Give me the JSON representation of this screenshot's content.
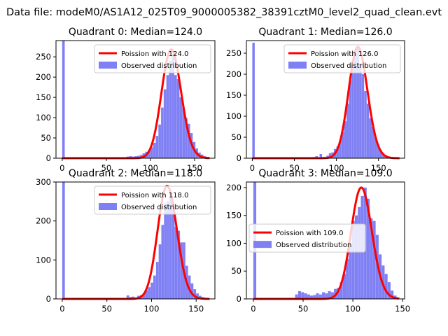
{
  "figure": {
    "title": "Data file: modeM0/AS1A12_025T09_9000005382_38391cztM0_level2_quad_clean.evt"
  },
  "colors": {
    "hist": "#8080f5",
    "fit": "#ff0000",
    "axis": "#000000"
  },
  "chart_data": [
    {
      "type": "bar",
      "title": "Quadrant 0: Median=124.0",
      "median": 124.0,
      "xlim": [
        -7,
        173
      ],
      "ylim": [
        0,
        290
      ],
      "xticks": [
        0,
        50,
        100,
        150
      ],
      "yticks": [
        0,
        50,
        100,
        150,
        200,
        250
      ],
      "bin_width": 2.9,
      "legend": {
        "placement": "upper right",
        "labels": [
          "Poission with 124.0",
          "Observed distribution"
        ]
      },
      "series": [
        {
          "name": "Observed distribution",
          "type": "histogram",
          "bins": [
            [
              0,
              290
            ],
            [
              73,
              4
            ],
            [
              76,
              5
            ],
            [
              79,
              4
            ],
            [
              82,
              5
            ],
            [
              85,
              6
            ],
            [
              88,
              8
            ],
            [
              91,
              12
            ],
            [
              94,
              16
            ],
            [
              97,
              20
            ],
            [
              100,
              27
            ],
            [
              103,
              38
            ],
            [
              106,
              55
            ],
            [
              109,
              83
            ],
            [
              112,
              125
            ],
            [
              115,
              170
            ],
            [
              118,
              205
            ],
            [
              121,
              240
            ],
            [
              124,
              255
            ],
            [
              127,
              205
            ],
            [
              130,
              195
            ],
            [
              133,
              150
            ],
            [
              136,
              125
            ],
            [
              139,
              100
            ],
            [
              142,
              85
            ],
            [
              145,
              62
            ],
            [
              148,
              40
            ],
            [
              151,
              24
            ],
            [
              154,
              14
            ],
            [
              157,
              9
            ],
            [
              160,
              5
            ],
            [
              163,
              3
            ]
          ]
        },
        {
          "name": "Poission with 124.0",
          "type": "line",
          "mean": 124.0,
          "peak": 268
        }
      ]
    },
    {
      "type": "bar",
      "title": "Quadrant 1: Median=126.0",
      "median": 126.0,
      "xlim": [
        -7,
        181
      ],
      "ylim": [
        0,
        280
      ],
      "xticks": [
        0,
        50,
        100,
        150
      ],
      "yticks": [
        0,
        50,
        100,
        150,
        200,
        250
      ],
      "bin_width": 2.9,
      "legend": {
        "placement": "upper right",
        "labels": [
          "Poission with 126.0",
          "Observed distribution"
        ]
      },
      "series": [
        {
          "name": "Observed distribution",
          "type": "histogram",
          "bins": [
            [
              0,
              275
            ],
            [
              72,
              3
            ],
            [
              75,
              5
            ],
            [
              80,
              10
            ],
            [
              84,
              3
            ],
            [
              88,
              6
            ],
            [
              91,
              12
            ],
            [
              94,
              14
            ],
            [
              97,
              22
            ],
            [
              100,
              28
            ],
            [
              103,
              42
            ],
            [
              106,
              62
            ],
            [
              109,
              88
            ],
            [
              112,
              130
            ],
            [
              115,
              185
            ],
            [
              118,
              215
            ],
            [
              121,
              250
            ],
            [
              124,
              265
            ],
            [
              127,
              225
            ],
            [
              130,
              200
            ],
            [
              133,
              160
            ],
            [
              136,
              130
            ],
            [
              139,
              95
            ],
            [
              142,
              75
            ],
            [
              145,
              50
            ],
            [
              148,
              33
            ],
            [
              151,
              20
            ],
            [
              154,
              12
            ],
            [
              157,
              7
            ],
            [
              160,
              4
            ],
            [
              163,
              2
            ]
          ]
        },
        {
          "name": "Poission with 126.0",
          "type": "line",
          "mean": 126.0,
          "peak": 265
        }
      ]
    },
    {
      "type": "bar",
      "title": "Quadrant 2: Median=118.0",
      "median": 118.0,
      "xlim": [
        -7,
        171
      ],
      "ylim": [
        0,
        300
      ],
      "xticks": [
        0,
        50,
        100,
        150
      ],
      "yticks": [
        0,
        100,
        200,
        300
      ],
      "bin_width": 2.9,
      "legend": {
        "placement": "upper right",
        "labels": [
          "Poission with 118.0",
          "Observed distribution"
        ]
      },
      "series": [
        {
          "name": "Observed distribution",
          "type": "histogram",
          "bins": [
            [
              0,
              300
            ],
            [
              72,
              9
            ],
            [
              75,
              5
            ],
            [
              78,
              6
            ],
            [
              81,
              4
            ],
            [
              84,
              8
            ],
            [
              87,
              10
            ],
            [
              90,
              14
            ],
            [
              93,
              22
            ],
            [
              96,
              30
            ],
            [
              99,
              42
            ],
            [
              102,
              60
            ],
            [
              105,
              95
            ],
            [
              108,
              140
            ],
            [
              111,
              190
            ],
            [
              114,
              245
            ],
            [
              117,
              250
            ],
            [
              120,
              260
            ],
            [
              123,
              240
            ],
            [
              126,
              185
            ],
            [
              129,
              175
            ],
            [
              132,
              145
            ],
            [
              135,
              145
            ],
            [
              138,
              85
            ],
            [
              141,
              60
            ],
            [
              144,
              40
            ],
            [
              147,
              25
            ],
            [
              150,
              14
            ],
            [
              153,
              8
            ],
            [
              156,
              5
            ],
            [
              159,
              3
            ]
          ]
        },
        {
          "name": "Poission with 118.0",
          "type": "line",
          "mean": 118.0,
          "peak": 290
        }
      ]
    },
    {
      "type": "bar",
      "title": "Quadrant 3: Median=109.0",
      "median": 109.0,
      "xlim": [
        -7,
        152
      ],
      "ylim": [
        0,
        210
      ],
      "xticks": [
        0,
        50,
        100,
        150
      ],
      "yticks": [
        0,
        50,
        100,
        150,
        200
      ],
      "bin_width": 2.9,
      "legend": {
        "placement": "center left",
        "labels": [
          "Poission with 109.0",
          "Observed distribution"
        ]
      },
      "series": [
        {
          "name": "Observed distribution",
          "type": "histogram",
          "bins": [
            [
              0,
              210
            ],
            [
              42,
              8
            ],
            [
              45,
              14
            ],
            [
              48,
              12
            ],
            [
              51,
              10
            ],
            [
              54,
              8
            ],
            [
              57,
              6
            ],
            [
              60,
              7
            ],
            [
              63,
              10
            ],
            [
              66,
              8
            ],
            [
              69,
              12
            ],
            [
              72,
              10
            ],
            [
              75,
              14
            ],
            [
              78,
              12
            ],
            [
              81,
              18
            ],
            [
              84,
              20
            ],
            [
              87,
              30
            ],
            [
              90,
              45
            ],
            [
              93,
              72
            ],
            [
              96,
              95
            ],
            [
              99,
              140
            ],
            [
              102,
              150
            ],
            [
              105,
              165
            ],
            [
              108,
              185
            ],
            [
              111,
              200
            ],
            [
              114,
              180
            ],
            [
              117,
              145
            ],
            [
              120,
              140
            ],
            [
              123,
              115
            ],
            [
              126,
              80
            ],
            [
              129,
              60
            ],
            [
              132,
              45
            ],
            [
              135,
              30
            ],
            [
              138,
              15
            ],
            [
              141,
              6
            ],
            [
              144,
              3
            ]
          ]
        },
        {
          "name": "Poission with 109.0",
          "type": "line",
          "mean": 109.0,
          "peak": 200
        }
      ]
    }
  ]
}
